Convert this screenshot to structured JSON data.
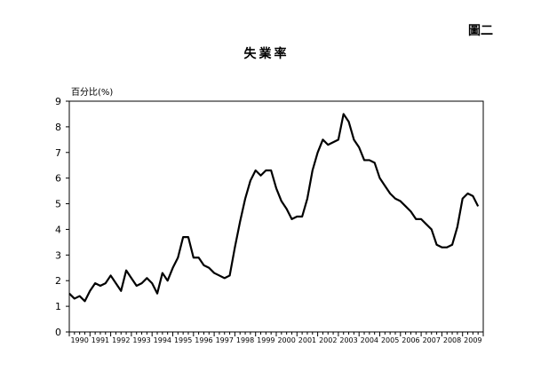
{
  "figure_label": "圖二",
  "chart_data": {
    "type": "line",
    "title": "失業率",
    "ylabel": "百分比(%)",
    "xlabel": "",
    "ylim": [
      0,
      9
    ],
    "xlim": [
      1990,
      2010
    ],
    "yticks": [
      "0",
      "1",
      "2",
      "3",
      "4",
      "5",
      "6",
      "7",
      "8",
      "9"
    ],
    "xticks": [
      "1990",
      "1991",
      "1992",
      "1993",
      "1994",
      "1995",
      "1996",
      "1997",
      "1998",
      "1999",
      "2000",
      "2001",
      "2002",
      "2003",
      "2004",
      "2005",
      "2006",
      "2007",
      "2008",
      "2009"
    ],
    "grid": false,
    "legend": "none",
    "line_color": "#000000",
    "series": [
      {
        "values": [
          [
            1990.0,
            1.5
          ],
          [
            1990.25,
            1.3
          ],
          [
            1990.5,
            1.4
          ],
          [
            1990.75,
            1.2
          ],
          [
            1991.0,
            1.6
          ],
          [
            1991.25,
            1.9
          ],
          [
            1991.5,
            1.8
          ],
          [
            1991.75,
            1.9
          ],
          [
            1992.0,
            2.2
          ],
          [
            1992.25,
            1.9
          ],
          [
            1992.5,
            1.6
          ],
          [
            1992.75,
            2.4
          ],
          [
            1993.0,
            2.1
          ],
          [
            1993.25,
            1.8
          ],
          [
            1993.5,
            1.9
          ],
          [
            1993.75,
            2.1
          ],
          [
            1994.0,
            1.9
          ],
          [
            1994.25,
            1.5
          ],
          [
            1994.5,
            2.3
          ],
          [
            1994.75,
            2.0
          ],
          [
            1995.0,
            2.5
          ],
          [
            1995.25,
            2.9
          ],
          [
            1995.5,
            3.7
          ],
          [
            1995.75,
            3.7
          ],
          [
            1996.0,
            2.9
          ],
          [
            1996.25,
            2.9
          ],
          [
            1996.5,
            2.6
          ],
          [
            1996.75,
            2.5
          ],
          [
            1997.0,
            2.3
          ],
          [
            1997.25,
            2.2
          ],
          [
            1997.5,
            2.1
          ],
          [
            1997.75,
            2.2
          ],
          [
            1998.0,
            3.3
          ],
          [
            1998.25,
            4.3
          ],
          [
            1998.5,
            5.2
          ],
          [
            1998.75,
            5.9
          ],
          [
            1999.0,
            6.3
          ],
          [
            1999.25,
            6.1
          ],
          [
            1999.5,
            6.3
          ],
          [
            1999.75,
            6.3
          ],
          [
            2000.0,
            5.6
          ],
          [
            2000.25,
            5.1
          ],
          [
            2000.5,
            4.8
          ],
          [
            2000.75,
            4.4
          ],
          [
            2001.0,
            4.5
          ],
          [
            2001.25,
            4.5
          ],
          [
            2001.5,
            5.2
          ],
          [
            2001.75,
            6.3
          ],
          [
            2002.0,
            7.0
          ],
          [
            2002.25,
            7.5
          ],
          [
            2002.5,
            7.3
          ],
          [
            2002.75,
            7.4
          ],
          [
            2003.0,
            7.5
          ],
          [
            2003.25,
            8.5
          ],
          [
            2003.5,
            8.2
          ],
          [
            2003.75,
            7.5
          ],
          [
            2004.0,
            7.2
          ],
          [
            2004.25,
            6.7
          ],
          [
            2004.5,
            6.7
          ],
          [
            2004.75,
            6.6
          ],
          [
            2005.0,
            6.0
          ],
          [
            2005.25,
            5.7
          ],
          [
            2005.5,
            5.4
          ],
          [
            2005.75,
            5.2
          ],
          [
            2006.0,
            5.1
          ],
          [
            2006.25,
            4.9
          ],
          [
            2006.5,
            4.7
          ],
          [
            2006.75,
            4.4
          ],
          [
            2007.0,
            4.4
          ],
          [
            2007.25,
            4.2
          ],
          [
            2007.5,
            4.0
          ],
          [
            2007.75,
            3.4
          ],
          [
            2008.0,
            3.3
          ],
          [
            2008.25,
            3.3
          ],
          [
            2008.5,
            3.4
          ],
          [
            2008.75,
            4.1
          ],
          [
            2009.0,
            5.2
          ],
          [
            2009.25,
            5.4
          ],
          [
            2009.5,
            5.3
          ],
          [
            2009.75,
            4.9
          ]
        ]
      }
    ]
  }
}
